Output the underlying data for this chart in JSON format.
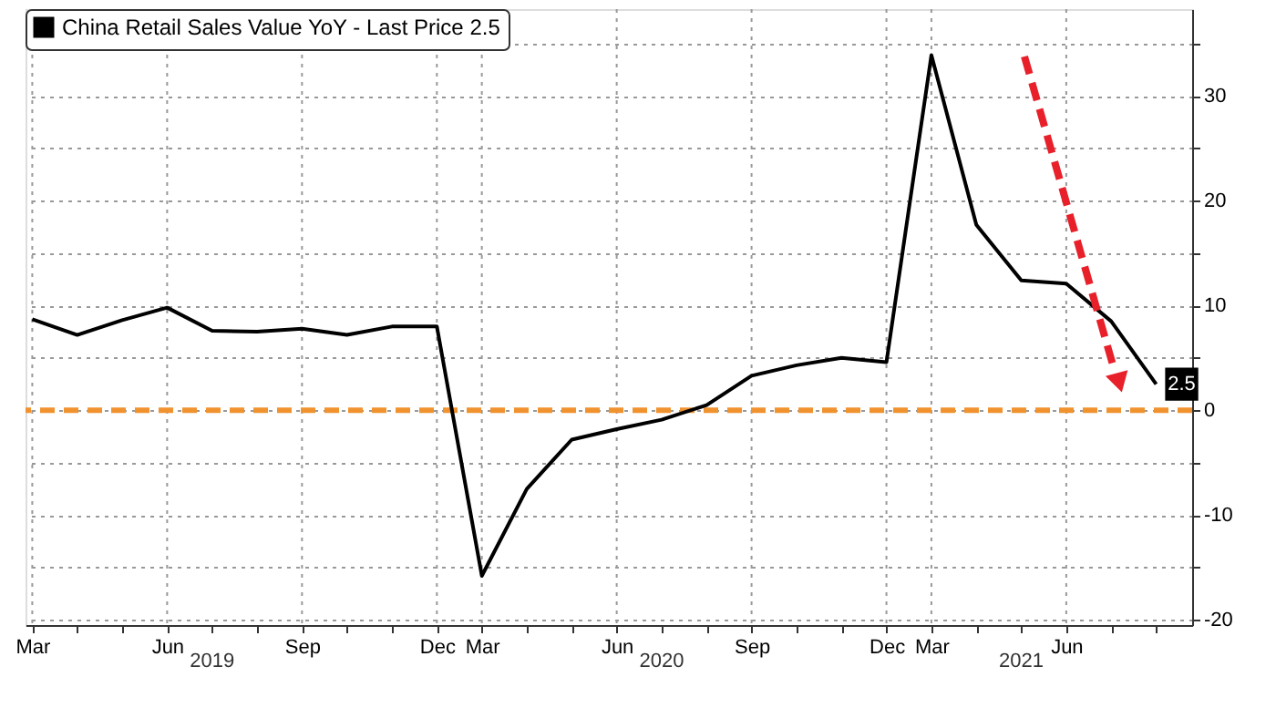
{
  "chart_data": {
    "type": "line",
    "categories": [
      "Mar",
      null,
      null,
      "Jun",
      null,
      null,
      "Sep",
      null,
      null,
      "Dec",
      "Mar",
      null,
      null,
      "Jun",
      null,
      null,
      "Sep",
      null,
      null,
      "Dec",
      "Mar",
      null,
      null,
      "Jun",
      null,
      null
    ],
    "series": [
      {
        "name": "China Retail Sales Value YoY - Last Price 2.5",
        "color": "#000000",
        "values": [
          8.7,
          7.2,
          8.6,
          9.8,
          7.6,
          7.5,
          7.8,
          7.2,
          8.0,
          8.0,
          -15.8,
          -7.5,
          -2.8,
          -1.8,
          -0.9,
          0.5,
          3.3,
          4.3,
          5.0,
          4.6,
          33.9,
          17.7,
          12.4,
          12.1,
          8.5,
          2.5
        ],
        "value_labels": [
          null,
          null,
          null,
          null,
          null,
          null,
          null,
          null,
          null,
          null,
          null,
          null,
          null,
          null,
          null,
          null,
          null,
          null,
          null,
          null,
          null,
          null,
          null,
          null,
          null,
          "2.5"
        ]
      }
    ],
    "ylim": [
      -20.5,
      38.3
    ],
    "yticks": [
      {
        "value": -20,
        "label": "-20"
      },
      {
        "value": -15,
        "label": null
      },
      {
        "value": -10,
        "label": "-10"
      },
      {
        "value": -5,
        "label": null
      },
      0,
      {
        "value": 5,
        "label": null
      },
      10,
      {
        "value": 15,
        "label": null
      },
      20,
      {
        "value": 25,
        "label": null
      },
      30,
      {
        "value": 35,
        "label": null
      }
    ],
    "ref_lines": [
      {
        "axis": "y",
        "value": 0,
        "label": null,
        "color": "#f0922e",
        "line_style": "dashed"
      }
    ],
    "annotations": [
      "2019",
      "2020",
      "2021"
    ],
    "grid": true,
    "legend": "top left",
    "marker": "none",
    "line_style": "solid"
  }
}
